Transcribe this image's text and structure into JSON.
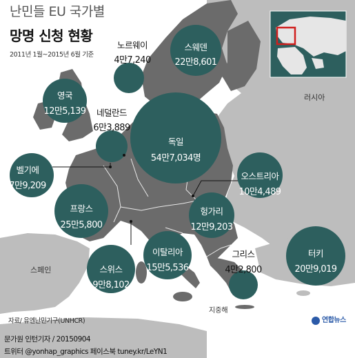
{
  "title": {
    "line1": "난민들 EU 국가별",
    "line2": "망명 신청 현황",
    "period": "2011년 1월~2015년 6월 기준"
  },
  "colors": {
    "bubble": "#2d5f5e",
    "land_dark": "#6b6b6b",
    "land_light": "#bdbdbd",
    "sea": "#ffffff",
    "inset_box": "#d0201e"
  },
  "countries": [
    {
      "id": "sweden",
      "name": "스웨덴",
      "value_text": "22만8,601",
      "applications": 228601,
      "text_color": "white"
    },
    {
      "id": "norway",
      "name": "노르웨이",
      "value_text": "4만7,240",
      "applications": 47240,
      "text_color": "dark"
    },
    {
      "id": "uk",
      "name": "영국",
      "value_text": "12만5,139",
      "applications": 125139,
      "text_color": "white"
    },
    {
      "id": "netherlands",
      "name": "네덜란드",
      "value_text": "6만3,889",
      "applications": 63889,
      "text_color": "dark"
    },
    {
      "id": "germany",
      "name": "독일",
      "value_text": "54만7,034명",
      "applications": 547034,
      "text_color": "white"
    },
    {
      "id": "belgium",
      "name": "벨기에",
      "value_text": "7만9,209",
      "applications": 79209,
      "text_color": "white"
    },
    {
      "id": "austria",
      "name": "오스트리아",
      "value_text": "10만4,489",
      "applications": 104489,
      "text_color": "white"
    },
    {
      "id": "france",
      "name": "프랑스",
      "value_text": "25만5,800",
      "applications": 255800,
      "text_color": "white"
    },
    {
      "id": "hungary",
      "name": "헝가리",
      "value_text": "12만9,203",
      "applications": 129203,
      "text_color": "white"
    },
    {
      "id": "switzerland",
      "name": "스위스",
      "value_text": "9만8,102",
      "applications": 98102,
      "text_color": "white"
    },
    {
      "id": "italy",
      "name": "이탈리아",
      "value_text": "15만5,536",
      "applications": 155536,
      "text_color": "white"
    },
    {
      "id": "greece",
      "name": "그리스",
      "value_text": "4만2,800",
      "applications": 42800,
      "text_color": "dark"
    },
    {
      "id": "turkey",
      "name": "터키",
      "value_text": "20만9,019",
      "applications": 209019,
      "text_color": "white"
    }
  ],
  "place_labels": {
    "russia": "러시아",
    "spain": "스페인",
    "mediterranean": "지중해"
  },
  "source": "자료/ 유엔난민기구(UNHCR)",
  "credits": {
    "line1": "문가원 인턴기자 / 20150904",
    "line2": "트위터 @yonhap_graphics  페이스북 tuney.kr/LeYN1"
  },
  "logo_text": "연합뉴스"
}
